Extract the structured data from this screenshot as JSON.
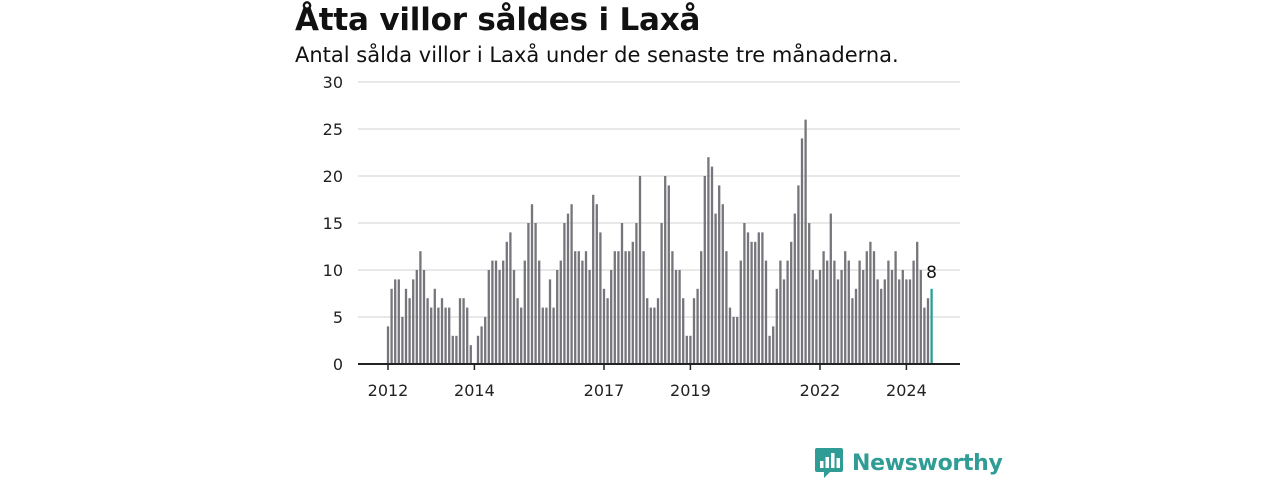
{
  "header": {
    "title": "Åtta villor såldes i Laxå",
    "subtitle": "Antal sålda villor i Laxå under de senaste tre månaderna."
  },
  "brand": {
    "name": "Newsworthy",
    "icon": "newsworthy-logo-icon",
    "color": "#2f9c95"
  },
  "colors": {
    "bar": "#75757b",
    "highlight": "#2a9d95",
    "grid": "#d9d9d9",
    "axis": "#222222"
  },
  "chart_data": {
    "type": "bar",
    "title": "Åtta villor såldes i Laxå",
    "subtitle": "Antal sålda villor i Laxå under de senaste tre månaderna.",
    "xlabel": "",
    "ylabel": "",
    "ylim": [
      0,
      30
    ],
    "yticks": [
      0,
      5,
      10,
      15,
      20,
      25,
      30
    ],
    "grid": true,
    "legend": "none",
    "x_start": "2012-01",
    "x_end": "2024-12",
    "xtick_labels": [
      {
        "label": "2012",
        "date": "2012-01"
      },
      {
        "label": "2014",
        "date": "2014-01"
      },
      {
        "label": "2017",
        "date": "2017-01"
      },
      {
        "label": "2019",
        "date": "2019-01"
      },
      {
        "label": "2022",
        "date": "2022-01"
      },
      {
        "label": "2024",
        "date": "2024-01"
      }
    ],
    "values": [
      4,
      8,
      9,
      9,
      5,
      8,
      7,
      9,
      10,
      12,
      10,
      7,
      6,
      8,
      6,
      7,
      6,
      6,
      3,
      3,
      7,
      7,
      6,
      2,
      0,
      3,
      4,
      5,
      10,
      11,
      11,
      10,
      11,
      13,
      14,
      10,
      7,
      6,
      11,
      15,
      17,
      15,
      11,
      6,
      6,
      9,
      6,
      10,
      11,
      15,
      16,
      17,
      12,
      12,
      11,
      12,
      10,
      18,
      17,
      14,
      8,
      7,
      10,
      12,
      12,
      15,
      12,
      12,
      13,
      15,
      20,
      12,
      7,
      6,
      6,
      7,
      15,
      20,
      19,
      12,
      10,
      10,
      7,
      3,
      3,
      7,
      8,
      12,
      20,
      22,
      21,
      16,
      19,
      17,
      12,
      6,
      5,
      5,
      11,
      15,
      14,
      13,
      13,
      14,
      14,
      11,
      3,
      4,
      8,
      11,
      9,
      11,
      13,
      16,
      19,
      24,
      26,
      15,
      10,
      9,
      10,
      12,
      11,
      16,
      11,
      9,
      10,
      12,
      11,
      7,
      8,
      11,
      10,
      12,
      13,
      12,
      9,
      8,
      9,
      11,
      10,
      12,
      9,
      10,
      9,
      9,
      11,
      13,
      10,
      6,
      7,
      8
    ],
    "highlight_last": true,
    "last_value_label": "8"
  }
}
